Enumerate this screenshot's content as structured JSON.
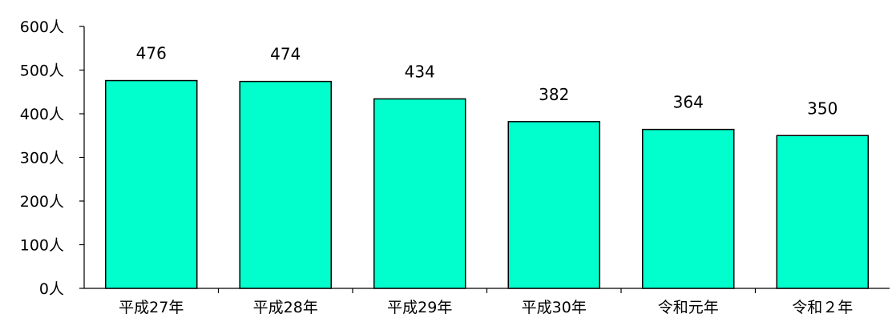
{
  "chart_data": {
    "type": "bar",
    "categories": [
      "平成27年",
      "平成28年",
      "平成29年",
      "平成30年",
      "令和元年",
      "令和２年"
    ],
    "values": [
      476,
      474,
      434,
      382,
      364,
      350
    ],
    "data_labels": [
      "476",
      "474",
      "434",
      "382",
      "364",
      "350"
    ],
    "y_ticks": [
      0,
      100,
      200,
      300,
      400,
      500,
      600
    ],
    "y_tick_labels": [
      "0人",
      "100人",
      "200人",
      "300人",
      "400人",
      "500人",
      "600人"
    ],
    "ylim": [
      0,
      600
    ],
    "title": "",
    "xlabel": "",
    "ylabel": "",
    "grid": false,
    "legend": "none",
    "colors": {
      "bar_fill": "#00FFCC",
      "bar_stroke": "#000000",
      "axis": "#000000"
    }
  }
}
